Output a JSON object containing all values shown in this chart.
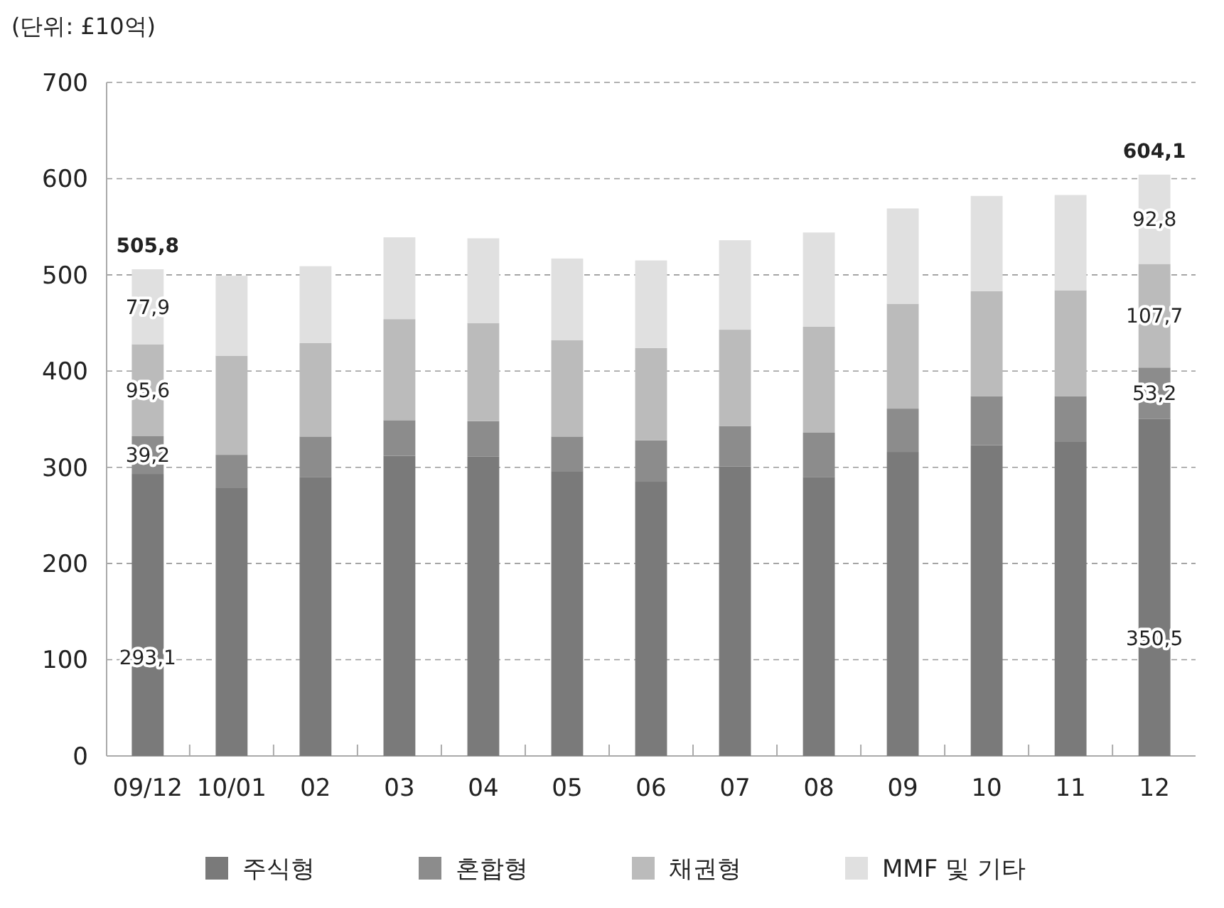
{
  "chart_data": {
    "type": "bar",
    "stacked": true,
    "ylabel": "(단위: £10억)",
    "categories": [
      "09/12",
      "10/01",
      "02",
      "03",
      "04",
      "05",
      "06",
      "07",
      "08",
      "09",
      "10",
      "11",
      "12"
    ],
    "series": [
      {
        "name": "주식형",
        "color": "#7a7a7a",
        "values": [
          293.1,
          279,
          290,
          312,
          311,
          296,
          285,
          301,
          290,
          316,
          323,
          327,
          350.5
        ],
        "value_labels": [
          "293,1",
          null,
          null,
          null,
          null,
          null,
          null,
          null,
          null,
          null,
          null,
          null,
          "350,5"
        ]
      },
      {
        "name": "혼합형",
        "color": "#8c8c8c",
        "values": [
          39.2,
          34,
          42,
          37,
          37,
          36,
          43,
          42,
          46,
          45,
          51,
          47,
          53.2
        ],
        "value_labels": [
          "39,2",
          null,
          null,
          null,
          null,
          null,
          null,
          null,
          null,
          null,
          null,
          null,
          "53,2"
        ]
      },
      {
        "name": "채권형",
        "color": "#bbbbbb",
        "values": [
          95.6,
          103,
          97,
          105,
          102,
          100,
          96,
          100,
          110,
          109,
          109,
          110,
          107.7
        ],
        "value_labels": [
          "95,6",
          null,
          null,
          null,
          null,
          null,
          null,
          null,
          null,
          null,
          null,
          null,
          "107,7"
        ]
      },
      {
        "name": "MMF 및 기타",
        "color": "#e0e0e0",
        "values": [
          77.9,
          83,
          80,
          85,
          88,
          85,
          91,
          93,
          98,
          99,
          99,
          99,
          92.8
        ],
        "value_labels": [
          "77,9",
          null,
          null,
          null,
          null,
          null,
          null,
          null,
          null,
          null,
          null,
          null,
          "92,8"
        ]
      }
    ],
    "totals": [
      "505,8",
      null,
      null,
      null,
      null,
      null,
      null,
      null,
      null,
      null,
      null,
      null,
      "604,1"
    ],
    "ylim": [
      0,
      700
    ],
    "yticks": [
      0,
      100,
      200,
      300,
      400,
      500,
      600,
      700
    ],
    "grid": "y",
    "legend": "bottom"
  }
}
